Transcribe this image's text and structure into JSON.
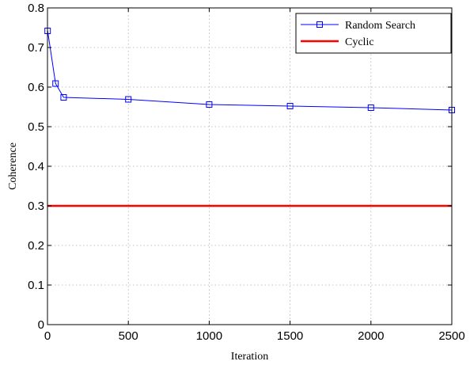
{
  "chart_data": {
    "type": "line",
    "xlabel": "Iteration",
    "ylabel": "Coherence",
    "xlim": [
      0,
      2500
    ],
    "ylim": [
      0,
      0.8
    ],
    "xticks": [
      0,
      500,
      1000,
      1500,
      2000,
      2500
    ],
    "yticks": [
      0,
      0.1,
      0.2,
      0.3,
      0.4,
      0.5,
      0.6,
      0.7,
      0.8
    ],
    "xtick_labels": [
      "0",
      "500",
      "1000",
      "1500",
      "2000",
      "2500"
    ],
    "ytick_labels": [
      "0",
      "0.1",
      "0.2",
      "0.3",
      "0.4",
      "0.5",
      "0.6",
      "0.7",
      "0.8"
    ],
    "grid": true,
    "legend_position": "top-right",
    "series": [
      {
        "name": "Random Search",
        "color": "#0000ff",
        "marker": "square",
        "x": [
          1,
          50,
          100,
          500,
          1000,
          1500,
          2000,
          2500
        ],
        "y": [
          0.742,
          0.609,
          0.574,
          0.569,
          0.556,
          0.552,
          0.548,
          0.542
        ]
      },
      {
        "name": "Cyclic",
        "color": "#ff0000",
        "marker": "none",
        "x": [
          0,
          2500
        ],
        "y": [
          0.3,
          0.3
        ]
      }
    ]
  }
}
